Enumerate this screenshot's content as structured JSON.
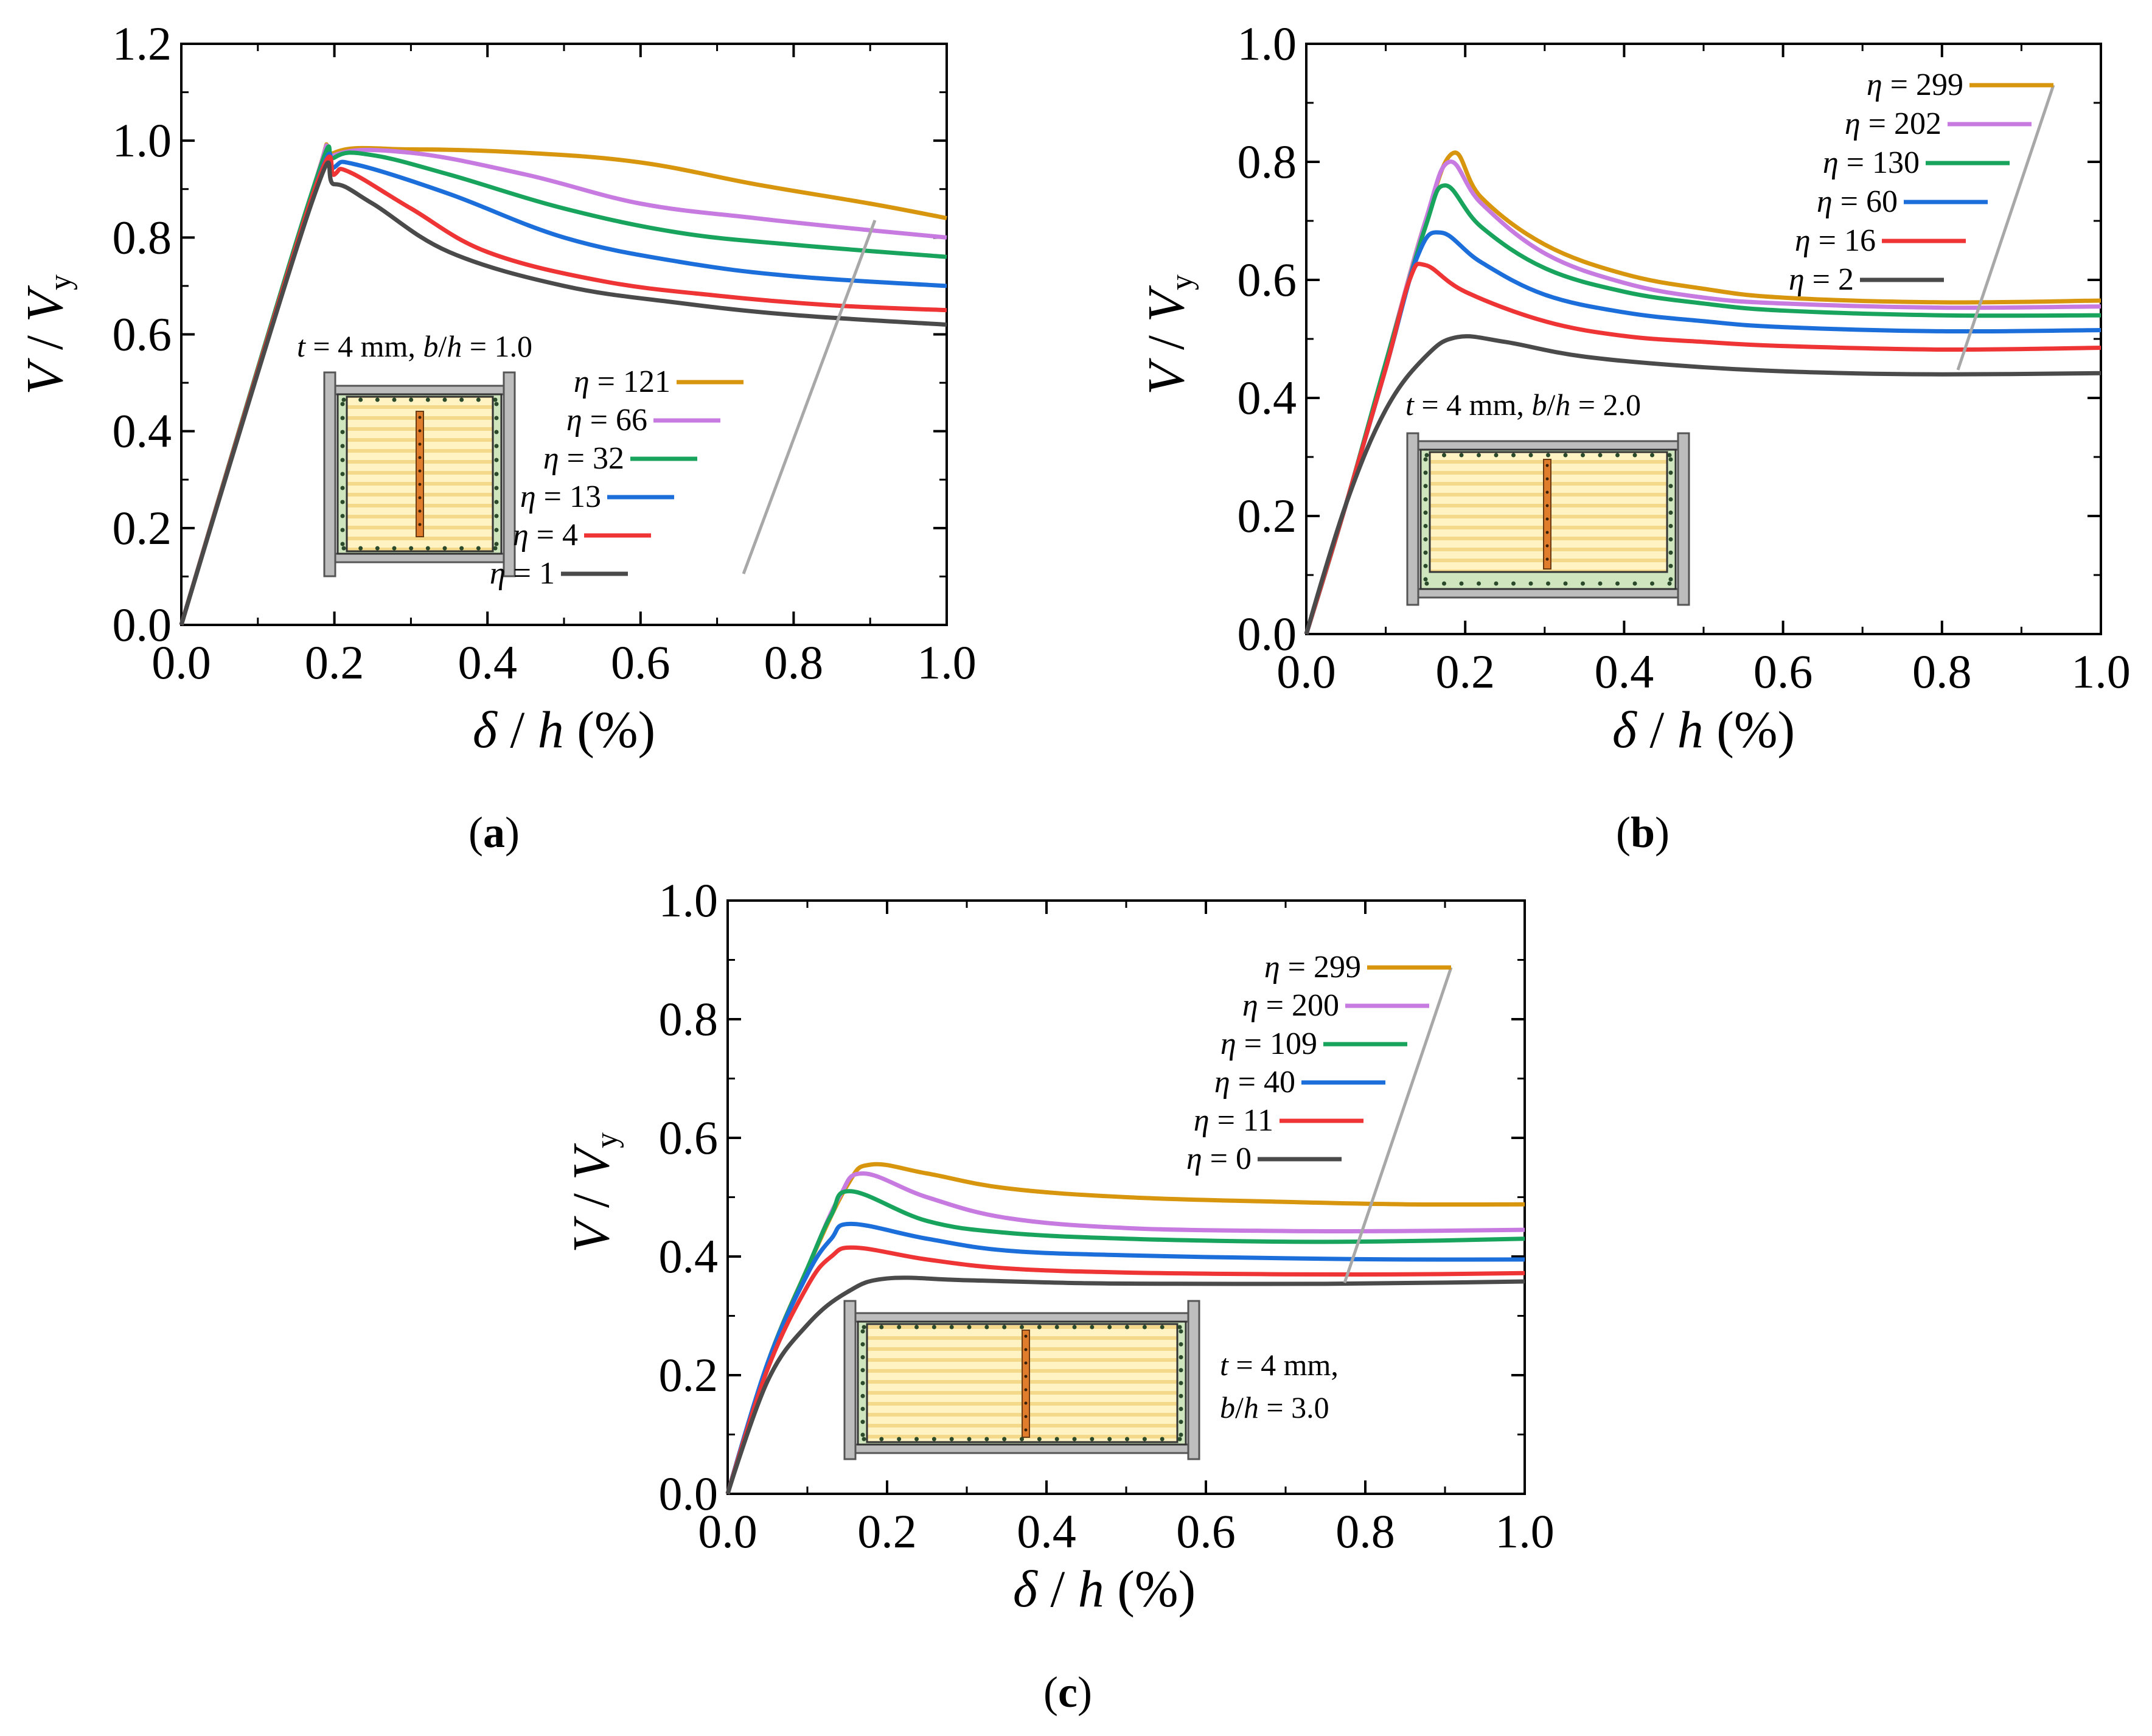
{
  "figure": {
    "panel_labels": [
      {
        "open": "(",
        "letter": "a",
        "close": ")"
      },
      {
        "open": "(",
        "letter": "b",
        "close": ")"
      },
      {
        "open": "(",
        "letter": "c",
        "close": ")"
      }
    ]
  },
  "colors": {
    "series": [
      "#D8960E",
      "#C77BE0",
      "#19A45E",
      "#1C6FDB",
      "#EE3434",
      "#4A4A4A"
    ],
    "leader_line": "#A8A8A8",
    "infill": "#FFF3C4",
    "infill_stripe": "#F4D98A",
    "frame_face": "#CFE5BE",
    "column": "#BDBDBD",
    "tie": "#E07D2D"
  },
  "chart_data": [
    {
      "type": "line",
      "xlabel": {
        "sym": "δ",
        "sep": " / ",
        "sym2": "h",
        "unit": " (%)"
      },
      "ylabel": {
        "sym": "V",
        "sep": " / ",
        "sym2": "V",
        "sub": "y"
      },
      "xlim": [
        0,
        1.0
      ],
      "ylim": [
        0,
        1.2
      ],
      "xticks": [
        "0.0",
        "0.2",
        "0.4",
        "0.6",
        "0.8",
        "1.0"
      ],
      "yticks": [
        "0.0",
        "0.2",
        "0.4",
        "0.6",
        "0.8",
        "1.0",
        "1.2"
      ],
      "annotation": {
        "t_sym": "t",
        "t_val": " = 4 mm, ",
        "bh_b": "b",
        "bh_sep": "/",
        "bh_h": "h",
        "bh_val": " = 1.0"
      },
      "series": [
        {
          "name": "η = 121",
          "sym": "η",
          "val": " = 121",
          "x": [
            0,
            0.17,
            0.2,
            0.3,
            0.45,
            0.6,
            0.75,
            0.9,
            1.0
          ],
          "y": [
            0,
            0.89,
            0.975,
            0.982,
            0.975,
            0.955,
            0.91,
            0.87,
            0.84
          ]
        },
        {
          "name": "η = 66",
          "sym": "η",
          "val": " = 66",
          "x": [
            0,
            0.17,
            0.2,
            0.3,
            0.45,
            0.6,
            0.75,
            0.9,
            1.0
          ],
          "y": [
            0,
            0.89,
            0.97,
            0.975,
            0.93,
            0.87,
            0.84,
            0.815,
            0.8
          ]
        },
        {
          "name": "η = 32",
          "sym": "η",
          "val": " = 32",
          "x": [
            0,
            0.17,
            0.2,
            0.25,
            0.35,
            0.5,
            0.65,
            0.8,
            1.0
          ],
          "y": [
            0,
            0.89,
            0.965,
            0.97,
            0.93,
            0.86,
            0.81,
            0.785,
            0.76
          ]
        },
        {
          "name": "η = 13",
          "sym": "η",
          "val": " = 13",
          "x": [
            0,
            0.17,
            0.2,
            0.23,
            0.35,
            0.5,
            0.65,
            0.8,
            1.0
          ],
          "y": [
            0,
            0.88,
            0.945,
            0.95,
            0.89,
            0.8,
            0.75,
            0.72,
            0.7
          ]
        },
        {
          "name": "η = 4",
          "sym": "η",
          "val": " = 4",
          "x": [
            0,
            0.17,
            0.2,
            0.22,
            0.3,
            0.4,
            0.55,
            0.7,
            0.85,
            1.0
          ],
          "y": [
            0,
            0.88,
            0.93,
            0.935,
            0.86,
            0.77,
            0.71,
            0.68,
            0.66,
            0.65
          ]
        },
        {
          "name": "η = 1",
          "sym": "η",
          "val": " = 1",
          "x": [
            0,
            0.17,
            0.2,
            0.25,
            0.35,
            0.5,
            0.65,
            0.8,
            1.0
          ],
          "y": [
            0,
            0.87,
            0.91,
            0.87,
            0.77,
            0.7,
            0.665,
            0.64,
            0.62
          ]
        }
      ]
    },
    {
      "type": "line",
      "xlabel": {
        "sym": "δ",
        "sep": " / ",
        "sym2": "h",
        "unit": " (%)"
      },
      "ylabel": {
        "sym": "V",
        "sep": " / ",
        "sym2": "V",
        "sub": "y"
      },
      "xlim": [
        0,
        1.0
      ],
      "ylim": [
        0,
        1.0
      ],
      "xticks": [
        "0.0",
        "0.2",
        "0.4",
        "0.6",
        "0.8",
        "1.0"
      ],
      "yticks": [
        "0.0",
        "0.2",
        "0.4",
        "0.6",
        "0.8",
        "1.0"
      ],
      "annotation": {
        "t_sym": "t",
        "t_val": " = 4 mm, ",
        "bh_b": "b",
        "bh_sep": "/",
        "bh_h": "h",
        "bh_val": " = 2.0"
      },
      "series": [
        {
          "name": "η = 299",
          "sym": "η",
          "val": " = 299",
          "x": [
            0,
            0.05,
            0.1,
            0.15,
            0.185,
            0.22,
            0.3,
            0.4,
            0.5,
            0.6,
            0.8,
            1.0
          ],
          "y": [
            0,
            0.22,
            0.46,
            0.7,
            0.815,
            0.74,
            0.66,
            0.61,
            0.585,
            0.57,
            0.562,
            0.565
          ]
        },
        {
          "name": "η = 202",
          "sym": "η",
          "val": " = 202",
          "x": [
            0,
            0.05,
            0.1,
            0.15,
            0.18,
            0.22,
            0.3,
            0.4,
            0.5,
            0.6,
            0.8,
            1.0
          ],
          "y": [
            0,
            0.22,
            0.46,
            0.7,
            0.8,
            0.73,
            0.645,
            0.595,
            0.57,
            0.56,
            0.553,
            0.555
          ]
        },
        {
          "name": "η = 130",
          "sym": "η",
          "val": " = 130",
          "x": [
            0,
            0.05,
            0.1,
            0.15,
            0.175,
            0.22,
            0.3,
            0.4,
            0.5,
            0.6,
            0.8,
            1.0
          ],
          "y": [
            0,
            0.22,
            0.46,
            0.69,
            0.76,
            0.69,
            0.62,
            0.58,
            0.56,
            0.548,
            0.54,
            0.54
          ]
        },
        {
          "name": "η = 60",
          "sym": "η",
          "val": " = 60",
          "x": [
            0,
            0.05,
            0.1,
            0.14,
            0.17,
            0.22,
            0.3,
            0.4,
            0.5,
            0.6,
            0.8,
            1.0
          ],
          "y": [
            0,
            0.22,
            0.45,
            0.64,
            0.68,
            0.63,
            0.575,
            0.545,
            0.53,
            0.52,
            0.513,
            0.515
          ]
        },
        {
          "name": "η = 16",
          "sym": "η",
          "val": " = 16",
          "x": [
            0,
            0.05,
            0.1,
            0.13,
            0.15,
            0.2,
            0.3,
            0.4,
            0.5,
            0.6,
            0.8,
            1.0
          ],
          "y": [
            0,
            0.22,
            0.45,
            0.6,
            0.625,
            0.58,
            0.53,
            0.505,
            0.495,
            0.488,
            0.482,
            0.485
          ]
        },
        {
          "name": "η = 2",
          "sym": "η",
          "val": " = 2",
          "x": [
            0,
            0.05,
            0.1,
            0.15,
            0.19,
            0.25,
            0.35,
            0.5,
            0.65,
            0.8,
            1.0
          ],
          "y": [
            0,
            0.22,
            0.38,
            0.47,
            0.503,
            0.495,
            0.47,
            0.452,
            0.443,
            0.44,
            0.442
          ]
        }
      ]
    },
    {
      "type": "line",
      "xlabel": {
        "sym": "δ",
        "sep": " / ",
        "sym2": "h",
        "unit": " (%)"
      },
      "ylabel": {
        "sym": "V",
        "sep": " / ",
        "sym2": "V",
        "sub": "y"
      },
      "xlim": [
        0,
        1.0
      ],
      "ylim": [
        0,
        1.0
      ],
      "xticks": [
        "0.0",
        "0.2",
        "0.4",
        "0.6",
        "0.8",
        "1.0"
      ],
      "yticks": [
        "0.0",
        "0.2",
        "0.4",
        "0.6",
        "0.8",
        "1.0"
      ],
      "annotation": {
        "t_sym": "t",
        "t_val": " = 4 mm,",
        "bh_b": "b",
        "bh_sep": "/",
        "bh_h": "h",
        "bh_val": " = 3.0"
      },
      "series": [
        {
          "name": "η = 299",
          "sym": "η",
          "val": " = 299",
          "x": [
            0,
            0.05,
            0.1,
            0.15,
            0.18,
            0.25,
            0.35,
            0.5,
            0.7,
            0.85,
            1.0
          ],
          "y": [
            0,
            0.22,
            0.38,
            0.52,
            0.555,
            0.54,
            0.515,
            0.5,
            0.492,
            0.488,
            0.488
          ]
        },
        {
          "name": "η = 200",
          "sym": "η",
          "val": " = 200",
          "x": [
            0,
            0.05,
            0.1,
            0.14,
            0.17,
            0.25,
            0.35,
            0.5,
            0.7,
            0.85,
            1.0
          ],
          "y": [
            0,
            0.22,
            0.38,
            0.5,
            0.54,
            0.5,
            0.465,
            0.448,
            0.443,
            0.443,
            0.445
          ]
        },
        {
          "name": "η = 109",
          "sym": "η",
          "val": " = 109",
          "x": [
            0,
            0.05,
            0.1,
            0.13,
            0.155,
            0.25,
            0.35,
            0.5,
            0.7,
            0.85,
            1.0
          ],
          "y": [
            0,
            0.22,
            0.38,
            0.47,
            0.51,
            0.46,
            0.44,
            0.43,
            0.425,
            0.426,
            0.43
          ]
        },
        {
          "name": "η = 40",
          "sym": "η",
          "val": " = 40",
          "x": [
            0,
            0.05,
            0.1,
            0.13,
            0.155,
            0.25,
            0.35,
            0.5,
            0.7,
            0.85,
            1.0
          ],
          "y": [
            0,
            0.22,
            0.37,
            0.43,
            0.455,
            0.43,
            0.41,
            0.402,
            0.397,
            0.395,
            0.395
          ]
        },
        {
          "name": "η = 11",
          "sym": "η",
          "val": " = 11",
          "x": [
            0,
            0.05,
            0.1,
            0.13,
            0.16,
            0.25,
            0.35,
            0.5,
            0.7,
            0.85,
            1.0
          ],
          "y": [
            0,
            0.21,
            0.35,
            0.4,
            0.415,
            0.395,
            0.38,
            0.373,
            0.37,
            0.37,
            0.372
          ]
        },
        {
          "name": "η = 0",
          "sym": "η",
          "val": " = 0",
          "x": [
            0,
            0.05,
            0.1,
            0.15,
            0.2,
            0.3,
            0.45,
            0.6,
            0.75,
            0.9,
            1.0
          ],
          "y": [
            0,
            0.19,
            0.285,
            0.34,
            0.363,
            0.36,
            0.355,
            0.354,
            0.354,
            0.356,
            0.358
          ]
        }
      ]
    }
  ]
}
